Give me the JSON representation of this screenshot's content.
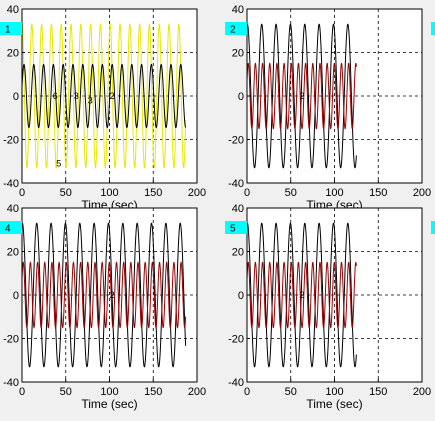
{
  "panels": [
    {
      "tab_label": "1",
      "xlabel": "Time (sec)",
      "chart_data": {
        "type": "line",
        "x_range": [
          0,
          200
        ],
        "y_range": [
          -40,
          40
        ],
        "x_ticks": [
          "0",
          "50",
          "100",
          "150",
          "200"
        ],
        "y_ticks": [
          "40",
          "20",
          "0",
          "-20",
          "-40"
        ],
        "grid": true,
        "series": [
          {
            "color": "#e8e800",
            "amplitude": 33,
            "offset": 0,
            "period": 11.2,
            "phase": 1.57,
            "t_start": 0,
            "t_end": 187
          },
          {
            "color": "#000000",
            "amplitude": 14.5,
            "offset": 0,
            "period": 11.2,
            "phase": 0.3,
            "t_start": 0,
            "t_end": 187
          }
        ],
        "annotations": [
          {
            "text": "6",
            "x": 38,
            "y": 0
          },
          {
            "text": "3",
            "x": 62,
            "y": 0
          },
          {
            "text": "3",
            "x": 78,
            "y": -2
          },
          {
            "text": "2",
            "x": 103,
            "y": 0
          },
          {
            "text": "5",
            "x": 42,
            "y": -31
          }
        ]
      }
    },
    {
      "tab_label": "2",
      "xlabel": "Time (sec)",
      "chart_data": {
        "type": "line",
        "x_range": [
          0,
          200
        ],
        "y_range": [
          -40,
          40
        ],
        "x_ticks": [
          "0",
          "50",
          "100",
          "150",
          "200"
        ],
        "y_ticks": [
          "40",
          "20",
          "0",
          "-20",
          "-40"
        ],
        "grid": true,
        "series": [
          {
            "color": "#000000",
            "amplitude": 33,
            "offset": 0,
            "period": 16.4,
            "phase": 1.4,
            "t_start": 0,
            "t_end": 125
          },
          {
            "color": "#9b0000",
            "amplitude": 15,
            "offset": 0,
            "period": 8.2,
            "phase": 0.5,
            "t_start": 0,
            "t_end": 125
          }
        ],
        "annotations": [
          {
            "text": "2",
            "x": 63,
            "y": 0
          }
        ]
      }
    },
    {
      "tab_label": "4",
      "xlabel": "Time (sec)",
      "chart_data": {
        "type": "line",
        "x_range": [
          0,
          200
        ],
        "y_range": [
          -40,
          40
        ],
        "x_ticks": [
          "0",
          "50",
          "100",
          "150",
          "200"
        ],
        "y_ticks": [
          "40",
          "20",
          "0",
          "-20",
          "-40"
        ],
        "grid": true,
        "series": [
          {
            "color": "#000000",
            "amplitude": 33,
            "offset": 0,
            "period": 16.4,
            "phase": 1.4,
            "t_start": 0,
            "t_end": 187
          },
          {
            "color": "#9b0000",
            "amplitude": 15,
            "offset": 0,
            "period": 8.2,
            "phase": 0.5,
            "t_start": 0,
            "t_end": 187
          }
        ],
        "annotations": [
          {
            "text": "2",
            "x": 103,
            "y": 0
          }
        ]
      }
    },
    {
      "tab_label": "5",
      "xlabel": "Time (sec)",
      "chart_data": {
        "type": "line",
        "x_range": [
          0,
          200
        ],
        "y_range": [
          -40,
          40
        ],
        "x_ticks": [
          "0",
          "50",
          "100",
          "150",
          "200"
        ],
        "y_ticks": [
          "40",
          "20",
          "0",
          "-20",
          "-40"
        ],
        "grid": true,
        "series": [
          {
            "color": "#000000",
            "amplitude": 33,
            "offset": 0,
            "period": 16.4,
            "phase": 1.4,
            "t_start": 0,
            "t_end": 125
          },
          {
            "color": "#9b0000",
            "amplitude": 15,
            "offset": 0,
            "period": 8.2,
            "phase": 0.5,
            "t_start": 0,
            "t_end": 125
          }
        ],
        "annotations": [
          {
            "text": "2",
            "x": 63,
            "y": 0
          }
        ]
      }
    }
  ],
  "colors": {
    "tab": "#00ffff",
    "plot_bg": "#ffffff",
    "grid": "#000000"
  }
}
